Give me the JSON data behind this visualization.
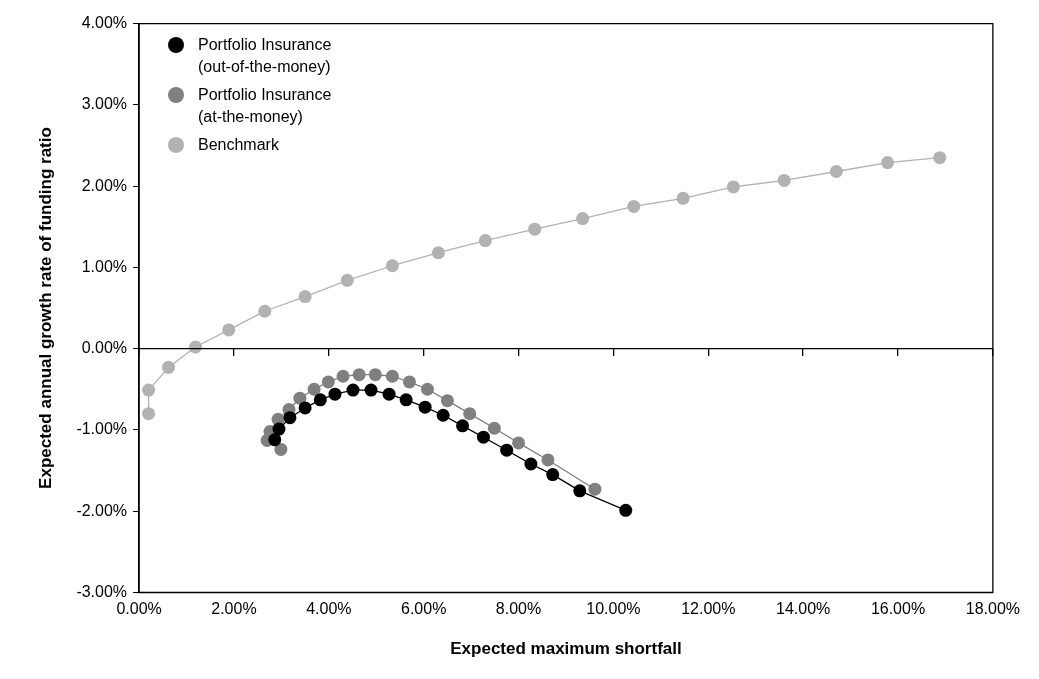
{
  "chart_data": {
    "type": "line",
    "xlabel": "Expected maximum shortfall",
    "ylabel": "Expected annual growth rate of funding ratio",
    "xlim": [
      0,
      18
    ],
    "ylim": [
      -3,
      4
    ],
    "xticks": [
      {
        "value": 0,
        "label": "0.00%"
      },
      {
        "value": 2,
        "label": "2.00%"
      },
      {
        "value": 4,
        "label": "4.00%"
      },
      {
        "value": 6,
        "label": "6.00%"
      },
      {
        "value": 8,
        "label": "8.00%"
      },
      {
        "value": 10,
        "label": "10.00%"
      },
      {
        "value": 12,
        "label": "12.00%"
      },
      {
        "value": 14,
        "label": "14.00%"
      },
      {
        "value": 16,
        "label": "16.00%"
      },
      {
        "value": 18,
        "label": "18.00%"
      }
    ],
    "yticks": [
      {
        "value": -3,
        "label": "-3.00%"
      },
      {
        "value": -2,
        "label": "-2.00%"
      },
      {
        "value": -1,
        "label": "-1.00%"
      },
      {
        "value": 0,
        "label": "0.00%"
      },
      {
        "value": 1,
        "label": "1.00%"
      },
      {
        "value": 2,
        "label": "2.00%"
      },
      {
        "value": 3,
        "label": "3.00%"
      },
      {
        "value": 4,
        "label": "4.00%"
      }
    ],
    "grid": false,
    "ref_lines": [
      {
        "axis": "y",
        "value": 0,
        "color": "#000000"
      }
    ],
    "legend": "top left",
    "marker": "circle",
    "line_style": "solid",
    "series": [
      {
        "name": "Portfolio Insurance (out-of-the-money)",
        "color": "#000000",
        "x": [
          2.86,
          2.95,
          3.18,
          3.5,
          3.82,
          4.13,
          4.51,
          4.89,
          5.27,
          5.63,
          6.03,
          6.41,
          6.82,
          7.26,
          7.75,
          8.26,
          8.72,
          9.29,
          10.26
        ],
        "values": [
          -1.12,
          -0.99,
          -0.85,
          -0.73,
          -0.63,
          -0.56,
          -0.51,
          -0.51,
          -0.56,
          -0.63,
          -0.72,
          -0.82,
          -0.95,
          -1.09,
          -1.25,
          -1.42,
          -1.55,
          -1.75,
          -1.99
        ]
      },
      {
        "name": "Portfolio Insurance (at-the-money)",
        "color": "#808080",
        "x": [
          2.99,
          2.7,
          2.76,
          2.93,
          3.16,
          3.39,
          3.69,
          3.99,
          4.3,
          4.64,
          4.98,
          5.34,
          5.7,
          6.08,
          6.5,
          6.97,
          7.49,
          8.0,
          8.62,
          9.61
        ],
        "values": [
          -1.24,
          -1.13,
          -1.02,
          -0.87,
          -0.75,
          -0.61,
          -0.5,
          -0.41,
          -0.34,
          -0.32,
          -0.32,
          -0.34,
          -0.41,
          -0.5,
          -0.64,
          -0.8,
          -0.98,
          -1.16,
          -1.37,
          -1.73
        ]
      },
      {
        "name": "Benchmark",
        "color": "#b2b2b2",
        "x": [
          0.2,
          0.2,
          0.62,
          1.19,
          1.89,
          2.65,
          3.5,
          4.39,
          5.34,
          6.31,
          7.3,
          8.34,
          9.35,
          10.43,
          11.47,
          12.53,
          13.6,
          14.7,
          15.78,
          16.88
        ],
        "values": [
          -0.8,
          -0.51,
          -0.23,
          0.02,
          0.23,
          0.46,
          0.64,
          0.84,
          1.02,
          1.18,
          1.33,
          1.47,
          1.6,
          1.75,
          1.85,
          1.99,
          2.07,
          2.18,
          2.29,
          2.35
        ]
      }
    ]
  }
}
